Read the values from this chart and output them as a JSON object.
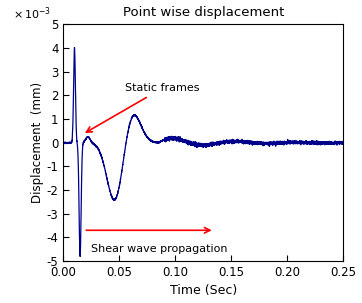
{
  "title": "Point wise displacement",
  "xlabel": "Time (Sec)",
  "ylabel": "Displacement  (mm)",
  "xlim": [
    0,
    0.25
  ],
  "ylim": [
    -0.005,
    0.005
  ],
  "line_color": "#00008B",
  "annotation_color": "red",
  "static_frames_label": "Static frames",
  "shear_wave_label": "Shear wave propagation",
  "figsize": [
    3.62,
    3.03
  ],
  "dpi": 100
}
